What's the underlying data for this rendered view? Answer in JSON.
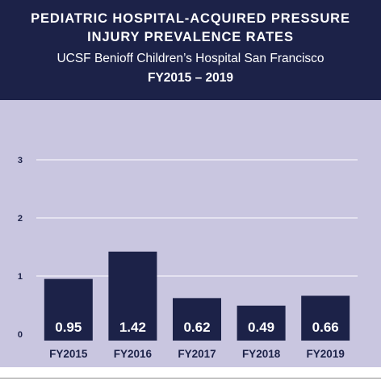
{
  "header": {
    "title_line1": "PEDIATRIC HOSPITAL-ACQUIRED PRESSURE",
    "title_line2": "INJURY PREVALENCE RATES",
    "subtitle": "UCSF Benioff Children’s Hospital San Francisco",
    "period": "FY2015 – 2019"
  },
  "colors": {
    "header_bg": "#1c2248",
    "plot_bg": "#c9c6e0",
    "bar": "#1c2248",
    "grid": "#ffffff",
    "text": "#1c2248"
  },
  "chart_data": {
    "type": "bar",
    "title": "PEDIATRIC HOSPITAL-ACQUIRED PRESSURE INJURY PREVALENCE RATES",
    "subtitle": "UCSF Benioff Children’s Hospital San Francisco FY2015 – 2019",
    "categories": [
      "FY2015",
      "FY2016",
      "FY2017",
      "FY2018",
      "FY2019"
    ],
    "values": [
      0.95,
      1.42,
      0.62,
      0.49,
      0.66
    ],
    "data_labels": [
      "0.95",
      "1.42",
      "0.62",
      "0.49",
      "0.66"
    ],
    "ylim": [
      0,
      3
    ],
    "yticks": [
      0,
      1,
      2,
      3
    ],
    "grid": true,
    "xlabel": "",
    "ylabel": ""
  }
}
